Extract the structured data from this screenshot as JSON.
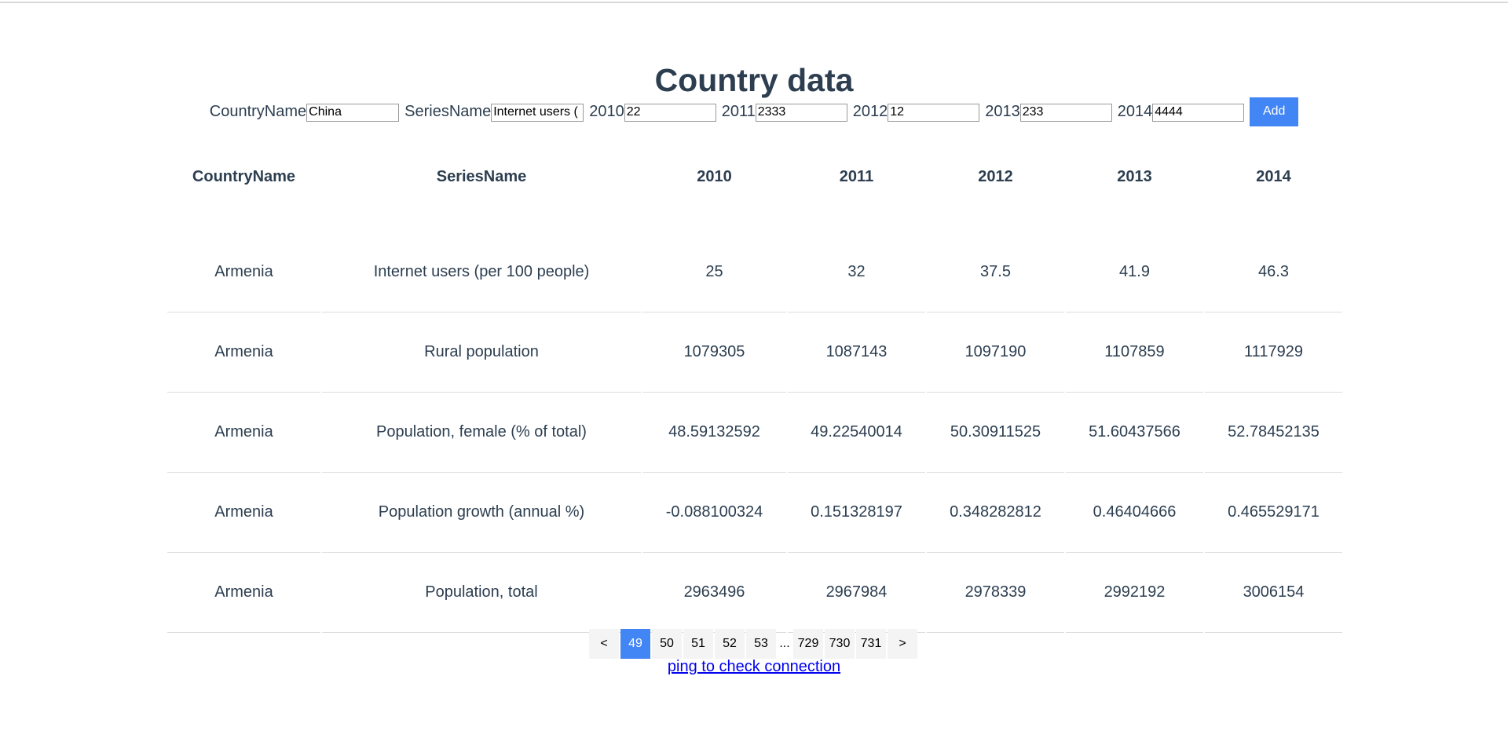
{
  "page": {
    "title": "Country data"
  },
  "form": {
    "country_label": "CountryName",
    "country_value": "China",
    "series_label": "SeriesName",
    "series_value": "Internet users (",
    "y2010_label": "2010",
    "y2010_value": "22",
    "y2011_label": "2011",
    "y2011_value": "2333",
    "y2012_label": "2012",
    "y2012_value": "12",
    "y2013_label": "2013",
    "y2013_value": "233",
    "y2014_label": "2014",
    "y2014_value": "4444",
    "add_label": "Add"
  },
  "table": {
    "headers": [
      "CountryName",
      "SeriesName",
      "2010",
      "2011",
      "2012",
      "2013",
      "2014"
    ],
    "rows": [
      [
        "Armenia",
        "Internet users (per 100 people)",
        "25",
        "32",
        "37.5",
        "41.9",
        "46.3"
      ],
      [
        "Armenia",
        "Rural population",
        "1079305",
        "1087143",
        "1097190",
        "1107859",
        "1117929"
      ],
      [
        "Armenia",
        "Population, female (% of total)",
        "48.59132592",
        "49.22540014",
        "50.30911525",
        "51.60437566",
        "52.78452135"
      ],
      [
        "Armenia",
        "Population growth (annual %)",
        "-0.088100324",
        "0.151328197",
        "0.348282812",
        "0.46404666",
        "0.465529171"
      ],
      [
        "Armenia",
        "Population, total",
        "2963496",
        "2967984",
        "2978339",
        "2992192",
        "3006154"
      ]
    ]
  },
  "pagination": {
    "prev": "<",
    "next": ">",
    "pages": [
      "49",
      "50",
      "51",
      "52",
      "53"
    ],
    "ellipsis": "...",
    "tail_pages": [
      "729",
      "730",
      "731"
    ],
    "current": "49"
  },
  "footer": {
    "ping_link": "ping to check connection"
  },
  "colors": {
    "accent": "#4285f4",
    "text": "#2c3e50",
    "link": "#0000ee"
  }
}
